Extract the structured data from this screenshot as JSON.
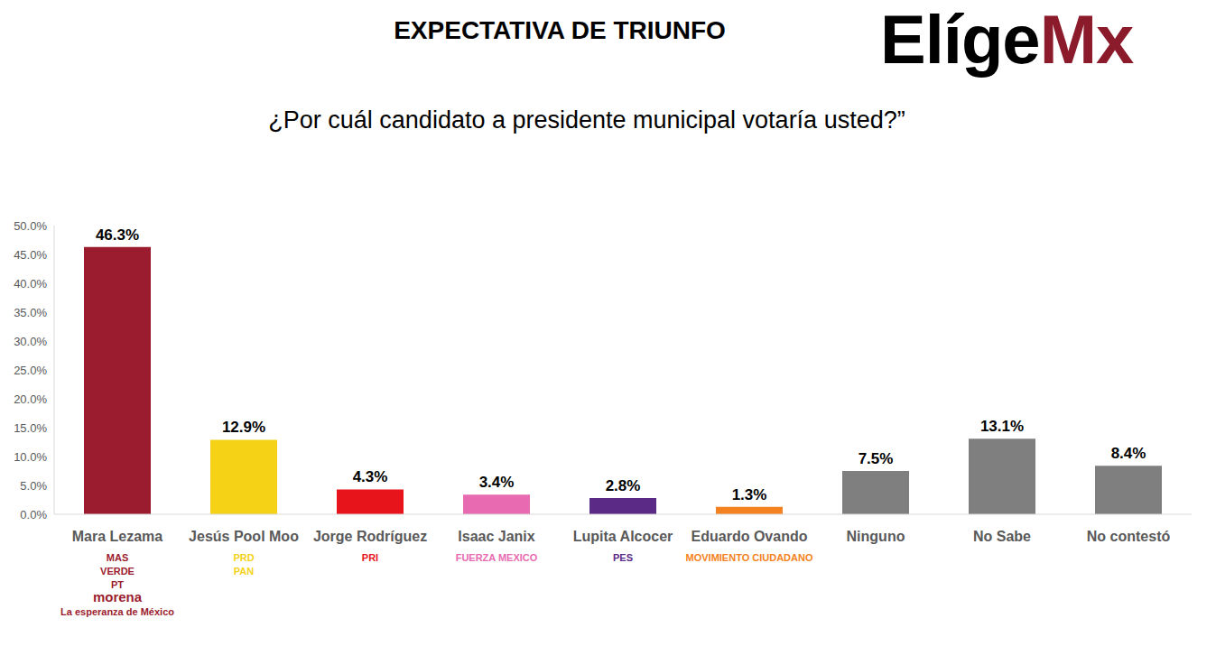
{
  "chart_data": {
    "type": "bar",
    "title": "EXPECTATIVA DE TRIUNFO",
    "brand": [
      "Elíge",
      "Mx"
    ],
    "subtitle": "¿Por cuál candidato a presidente municipal votaría usted?”",
    "categories": [
      "Mara Lezama",
      "Jesús Pool Moo",
      "Jorge Rodríguez",
      "Isaac Janix",
      "Lupita Alcocer",
      "Eduardo Ovando",
      "Ninguno",
      "No Sabe",
      "No contestó"
    ],
    "values": [
      46.3,
      12.9,
      4.3,
      3.4,
      2.8,
      1.3,
      7.5,
      13.1,
      8.4
    ],
    "value_labels": [
      "46.3%",
      "12.9%",
      "4.3%",
      "3.4%",
      "2.8%",
      "1.3%",
      "7.5%",
      "13.1%",
      "8.4%"
    ],
    "colors": [
      "#9b1c2e",
      "#f5d216",
      "#e8141c",
      "#e86ab0",
      "#5b2a86",
      "#f58220",
      "#7f7f7f",
      "#7f7f7f",
      "#7f7f7f"
    ],
    "party_logos": [
      [
        "MAS",
        "VERDE",
        "PT",
        "morena",
        "La esperanza de México"
      ],
      [
        "PRD",
        "PAN"
      ],
      [
        "PRI"
      ],
      [
        "FUERZA MEXICO"
      ],
      [
        "PES"
      ],
      [
        "MOVIMIENTO CIUDADANO"
      ],
      [],
      [],
      []
    ],
    "ylim": [
      0,
      50
    ],
    "yticks": [
      {
        "value": 0,
        "label": "0.0%"
      },
      {
        "value": 5,
        "label": "5.0%"
      },
      {
        "value": 10,
        "label": "10.0%"
      },
      {
        "value": 15,
        "label": "15.0%"
      },
      {
        "value": 20,
        "label": "20.0%"
      },
      {
        "value": 25,
        "label": "25.0%"
      },
      {
        "value": 30,
        "label": "30.0%"
      },
      {
        "value": 35,
        "label": "35.0%"
      },
      {
        "value": 40,
        "label": "40.0%"
      },
      {
        "value": 45,
        "label": "45.0%"
      },
      {
        "value": 50,
        "label": "50.0%"
      }
    ],
    "grid": false,
    "data_labels": true
  }
}
